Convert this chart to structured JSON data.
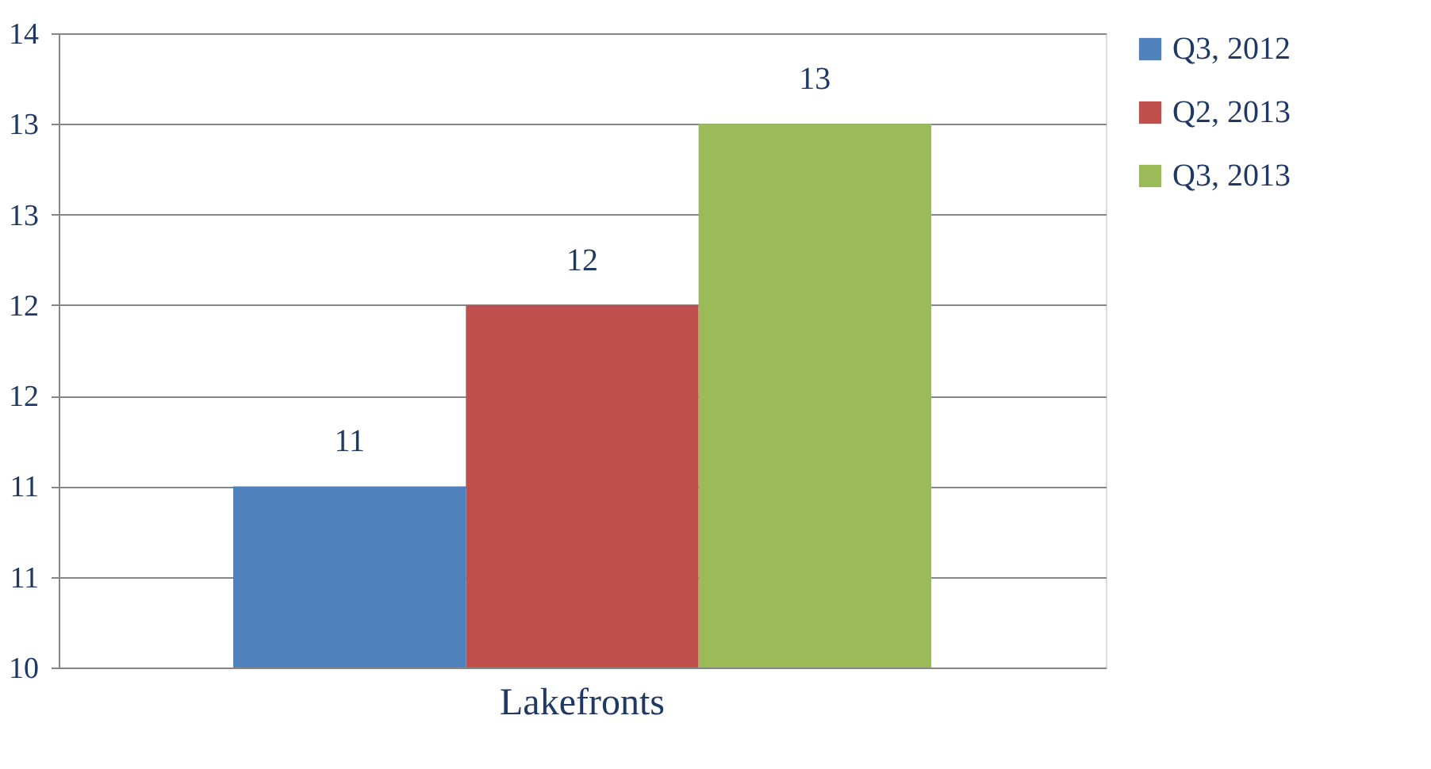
{
  "chart_data": {
    "type": "bar",
    "categories": [
      "Lakefronts"
    ],
    "series": [
      {
        "name": "Q3, 2012",
        "color": "#4f81bd",
        "values": [
          11
        ]
      },
      {
        "name": "Q2, 2013",
        "color": "#c0504d",
        "values": [
          12
        ]
      },
      {
        "name": "Q3, 2013",
        "color": "#9bbb59",
        "values": [
          13
        ]
      }
    ],
    "ylim": [
      10,
      13.5
    ],
    "yticks": [
      10,
      {
        "value": 10.5,
        "label": "11"
      },
      11,
      {
        "value": 11.5,
        "label": "12"
      },
      12,
      {
        "value": 12.5,
        "label": "13"
      },
      13,
      {
        "value": 13.5,
        "label": "14"
      }
    ],
    "grid": "y",
    "legend": "right",
    "data_labels": true
  }
}
